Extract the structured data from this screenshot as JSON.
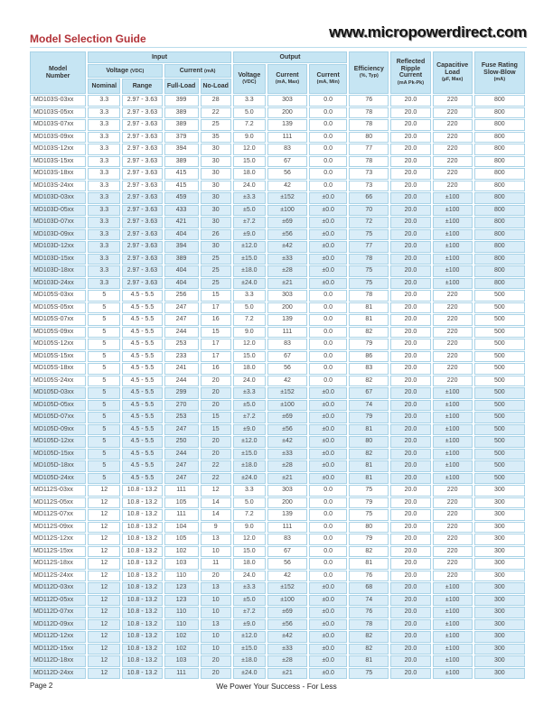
{
  "page": {
    "title": "Model Selection Guide",
    "website": "www.micropowerdirect.com",
    "footer_left": "Page 2",
    "footer_center": "We Power Your Success - For Less"
  },
  "colors": {
    "title_red": "#b23238",
    "header_bg": "#c6e5f3",
    "row_blue_bg": "#d9edf8",
    "grid_line": "#a9d3e7"
  },
  "table": {
    "header": {
      "model": [
        "Model",
        "Number"
      ],
      "group_input": "Input",
      "group_output": "Output",
      "voltage_label": "Voltage",
      "voltage_unit": "(VDC)",
      "current_label": "Current",
      "current_unit": "(mA)",
      "nominal": "Nominal",
      "range": "Range",
      "full_load": "Full-Load",
      "no_load": "No-Load",
      "out_voltage": [
        "Voltage",
        "(VDC)"
      ],
      "out_current_max": [
        "Current",
        "(mA, Max)"
      ],
      "out_current_min": [
        "Current",
        "(mA, Min)"
      ],
      "efficiency": [
        "Efficiency",
        "(%, Typ)"
      ],
      "ripple": [
        "Reflected",
        "Ripple",
        "Current",
        "(mA Pk-Pk)"
      ],
      "cap_load": [
        "Capacitive",
        "Load",
        "(µF, Max)"
      ],
      "fuse": [
        "Fuse Rating",
        "Slow-Blow",
        "(mA)"
      ]
    },
    "groups": [
      {
        "shade": "white",
        "rows": [
          [
            "MD103S-03xx",
            "3.3",
            "2.97 - 3.63",
            "399",
            "28",
            "3.3",
            "303",
            "0.0",
            "76",
            "20.0",
            "220",
            "800"
          ],
          [
            "MD103S-05xx",
            "3.3",
            "2.97 - 3.63",
            "389",
            "22",
            "5.0",
            "200",
            "0.0",
            "78",
            "20.0",
            "220",
            "800"
          ],
          [
            "MD103S-07xx",
            "3.3",
            "2.97 - 3.63",
            "389",
            "25",
            "7.2",
            "139",
            "0.0",
            "78",
            "20.0",
            "220",
            "800"
          ],
          [
            "MD103S-09xx",
            "3.3",
            "2.97 - 3.63",
            "379",
            "35",
            "9.0",
            "111",
            "0.0",
            "80",
            "20.0",
            "220",
            "800"
          ],
          [
            "MD103S-12xx",
            "3.3",
            "2.97 - 3.63",
            "394",
            "30",
            "12.0",
            "83",
            "0.0",
            "77",
            "20.0",
            "220",
            "800"
          ],
          [
            "MD103S-15xx",
            "3.3",
            "2.97 - 3.63",
            "389",
            "30",
            "15.0",
            "67",
            "0.0",
            "78",
            "20.0",
            "220",
            "800"
          ],
          [
            "MD103S-18xx",
            "3.3",
            "2.97 - 3.63",
            "415",
            "30",
            "18.0",
            "56",
            "0.0",
            "73",
            "20.0",
            "220",
            "800"
          ],
          [
            "MD103S-24xx",
            "3.3",
            "2.97 - 3.63",
            "415",
            "30",
            "24.0",
            "42",
            "0.0",
            "73",
            "20.0",
            "220",
            "800"
          ]
        ]
      },
      {
        "shade": "blue",
        "rows": [
          [
            "MD103D-03xx",
            "3.3",
            "2.97 - 3.63",
            "459",
            "30",
            "±3.3",
            "±152",
            "±0.0",
            "66",
            "20.0",
            "±100",
            "800"
          ],
          [
            "MD103D-05xx",
            "3.3",
            "2.97 - 3.63",
            "433",
            "30",
            "±5.0",
            "±100",
            "±0.0",
            "70",
            "20.0",
            "±100",
            "800"
          ],
          [
            "MD103D-07xx",
            "3.3",
            "2.97 - 3.63",
            "421",
            "30",
            "±7.2",
            "±69",
            "±0.0",
            "72",
            "20.0",
            "±100",
            "800"
          ],
          [
            "MD103D-09xx",
            "3.3",
            "2.97 - 3.63",
            "404",
            "26",
            "±9.0",
            "±56",
            "±0.0",
            "75",
            "20.0",
            "±100",
            "800"
          ],
          [
            "MD103D-12xx",
            "3.3",
            "2.97 - 3.63",
            "394",
            "30",
            "±12.0",
            "±42",
            "±0.0",
            "77",
            "20.0",
            "±100",
            "800"
          ],
          [
            "MD103D-15xx",
            "3.3",
            "2.97 - 3.63",
            "389",
            "25",
            "±15.0",
            "±33",
            "±0.0",
            "78",
            "20.0",
            "±100",
            "800"
          ],
          [
            "MD103D-18xx",
            "3.3",
            "2.97 - 3.63",
            "404",
            "25",
            "±18.0",
            "±28",
            "±0.0",
            "75",
            "20.0",
            "±100",
            "800"
          ],
          [
            "MD103D-24xx",
            "3.3",
            "2.97 - 3.63",
            "404",
            "25",
            "±24.0",
            "±21",
            "±0.0",
            "75",
            "20.0",
            "±100",
            "800"
          ]
        ]
      },
      {
        "shade": "white",
        "rows": [
          [
            "MD105S-03xx",
            "5",
            "4.5 - 5.5",
            "256",
            "15",
            "3.3",
            "303",
            "0.0",
            "78",
            "20.0",
            "220",
            "500"
          ],
          [
            "MD105S-05xx",
            "5",
            "4.5 - 5.5",
            "247",
            "17",
            "5.0",
            "200",
            "0.0",
            "81",
            "20.0",
            "220",
            "500"
          ],
          [
            "MD105S-07xx",
            "5",
            "4.5 - 5.5",
            "247",
            "16",
            "7.2",
            "139",
            "0.0",
            "81",
            "20.0",
            "220",
            "500"
          ],
          [
            "MD105S-09xx",
            "5",
            "4.5 - 5.5",
            "244",
            "15",
            "9.0",
            "111",
            "0.0",
            "82",
            "20.0",
            "220",
            "500"
          ],
          [
            "MD105S-12xx",
            "5",
            "4.5 - 5.5",
            "253",
            "17",
            "12.0",
            "83",
            "0.0",
            "79",
            "20.0",
            "220",
            "500"
          ],
          [
            "MD105S-15xx",
            "5",
            "4.5 - 5.5",
            "233",
            "17",
            "15.0",
            "67",
            "0.0",
            "86",
            "20.0",
            "220",
            "500"
          ],
          [
            "MD105S-18xx",
            "5",
            "4.5 - 5.5",
            "241",
            "16",
            "18.0",
            "56",
            "0.0",
            "83",
            "20.0",
            "220",
            "500"
          ],
          [
            "MD105S-24xx",
            "5",
            "4.5 - 5.5",
            "244",
            "20",
            "24.0",
            "42",
            "0.0",
            "82",
            "20.0",
            "220",
            "500"
          ]
        ]
      },
      {
        "shade": "blue",
        "rows": [
          [
            "MD105D-03xx",
            "5",
            "4.5 - 5.5",
            "299",
            "20",
            "±3.3",
            "±152",
            "±0.0",
            "67",
            "20.0",
            "±100",
            "500"
          ],
          [
            "MD105D-05xx",
            "5",
            "4.5 - 5.5",
            "270",
            "20",
            "±5.0",
            "±100",
            "±0.0",
            "74",
            "20.0",
            "±100",
            "500"
          ],
          [
            "MD105D-07xx",
            "5",
            "4.5 - 5.5",
            "253",
            "15",
            "±7.2",
            "±69",
            "±0.0",
            "79",
            "20.0",
            "±100",
            "500"
          ],
          [
            "MD105D-09xx",
            "5",
            "4.5 - 5.5",
            "247",
            "15",
            "±9.0",
            "±56",
            "±0.0",
            "81",
            "20.0",
            "±100",
            "500"
          ],
          [
            "MD105D-12xx",
            "5",
            "4.5 - 5.5",
            "250",
            "20",
            "±12.0",
            "±42",
            "±0.0",
            "80",
            "20.0",
            "±100",
            "500"
          ],
          [
            "MD105D-15xx",
            "5",
            "4.5 - 5.5",
            "244",
            "20",
            "±15.0",
            "±33",
            "±0.0",
            "82",
            "20.0",
            "±100",
            "500"
          ],
          [
            "MD105D-18xx",
            "5",
            "4.5 - 5.5",
            "247",
            "22",
            "±18.0",
            "±28",
            "±0.0",
            "81",
            "20.0",
            "±100",
            "500"
          ],
          [
            "MD105D-24xx",
            "5",
            "4.5 - 5.5",
            "247",
            "22",
            "±24.0",
            "±21",
            "±0.0",
            "81",
            "20.0",
            "±100",
            "500"
          ]
        ]
      },
      {
        "shade": "white",
        "rows": [
          [
            "MD112S-03xx",
            "12",
            "10.8 - 13.2",
            "111",
            "12",
            "3.3",
            "303",
            "0.0",
            "75",
            "20.0",
            "220",
            "300"
          ],
          [
            "MD112S-05xx",
            "12",
            "10.8 - 13.2",
            "105",
            "14",
            "5.0",
            "200",
            "0.0",
            "79",
            "20.0",
            "220",
            "300"
          ],
          [
            "MD112S-07xx",
            "12",
            "10.8 - 13.2",
            "111",
            "14",
            "7.2",
            "139",
            "0.0",
            "75",
            "20.0",
            "220",
            "300"
          ],
          [
            "MD112S-09xx",
            "12",
            "10.8 - 13.2",
            "104",
            "9",
            "9.0",
            "111",
            "0.0",
            "80",
            "20.0",
            "220",
            "300"
          ],
          [
            "MD112S-12xx",
            "12",
            "10.8 - 13.2",
            "105",
            "13",
            "12.0",
            "83",
            "0.0",
            "79",
            "20.0",
            "220",
            "300"
          ],
          [
            "MD112S-15xx",
            "12",
            "10.8 - 13.2",
            "102",
            "10",
            "15.0",
            "67",
            "0.0",
            "82",
            "20.0",
            "220",
            "300"
          ],
          [
            "MD112S-18xx",
            "12",
            "10.8 - 13.2",
            "103",
            "11",
            "18.0",
            "56",
            "0.0",
            "81",
            "20.0",
            "220",
            "300"
          ],
          [
            "MD112S-24xx",
            "12",
            "10.8 - 13.2",
            "110",
            "20",
            "24.0",
            "42",
            "0.0",
            "76",
            "20.0",
            "220",
            "300"
          ]
        ]
      },
      {
        "shade": "blue",
        "rows": [
          [
            "MD112D-03xx",
            "12",
            "10.8 - 13.2",
            "123",
            "13",
            "±3.3",
            "±152",
            "±0.0",
            "68",
            "20.0",
            "±100",
            "300"
          ],
          [
            "MD112D-05xx",
            "12",
            "10.8 - 13.2",
            "123",
            "10",
            "±5.0",
            "±100",
            "±0.0",
            "74",
            "20.0",
            "±100",
            "300"
          ],
          [
            "MD112D-07xx",
            "12",
            "10.8 - 13.2",
            "110",
            "10",
            "±7.2",
            "±69",
            "±0.0",
            "76",
            "20.0",
            "±100",
            "300"
          ],
          [
            "MD112D-09xx",
            "12",
            "10.8 - 13.2",
            "110",
            "13",
            "±9.0",
            "±56",
            "±0.0",
            "78",
            "20.0",
            "±100",
            "300"
          ],
          [
            "MD112D-12xx",
            "12",
            "10.8 - 13.2",
            "102",
            "10",
            "±12.0",
            "±42",
            "±0.0",
            "82",
            "20.0",
            "±100",
            "300"
          ],
          [
            "MD112D-15xx",
            "12",
            "10.8 - 13.2",
            "102",
            "10",
            "±15.0",
            "±33",
            "±0.0",
            "82",
            "20.0",
            "±100",
            "300"
          ],
          [
            "MD112D-18xx",
            "12",
            "10.8 - 13.2",
            "103",
            "20",
            "±18.0",
            "±28",
            "±0.0",
            "81",
            "20.0",
            "±100",
            "300"
          ],
          [
            "MD112D-24xx",
            "12",
            "10.8 - 13.2",
            "111",
            "20",
            "±24.0",
            "±21",
            "±0.0",
            "75",
            "20.0",
            "±100",
            "300"
          ]
        ]
      }
    ]
  }
}
